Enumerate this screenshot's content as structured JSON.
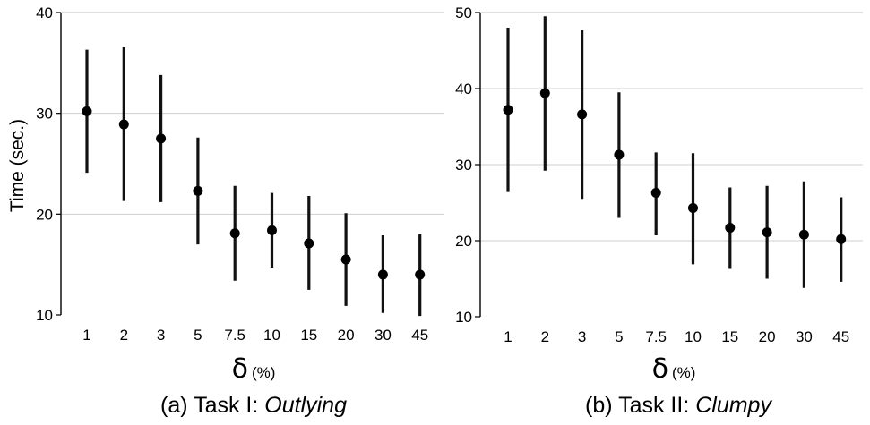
{
  "chart_data": [
    {
      "type": "scatter",
      "caption": {
        "prefix": "(a) Task I: ",
        "emph": "Outlying"
      },
      "ylabel": "Time (sec.)",
      "xlabel_symbol": "δ",
      "xlabel_unit": "(%)",
      "ylim": [
        10,
        40
      ],
      "yticks": [
        "10",
        "20",
        "30",
        "40"
      ],
      "categories": [
        "1",
        "2",
        "3",
        "5",
        "7.5",
        "10",
        "15",
        "20",
        "30",
        "45"
      ],
      "series": [
        {
          "values": [
            30.2,
            28.9,
            27.5,
            22.3,
            18.1,
            18.4,
            17.1,
            15.5,
            14.0,
            14.0
          ],
          "lower": [
            24.1,
            21.3,
            21.2,
            17.0,
            13.4,
            14.7,
            12.5,
            10.9,
            10.2,
            9.9
          ],
          "upper": [
            36.3,
            36.6,
            33.8,
            27.6,
            22.8,
            22.1,
            21.8,
            20.1,
            17.9,
            18.0
          ]
        }
      ],
      "grid": true
    },
    {
      "type": "scatter",
      "caption": {
        "prefix": "(b) Task II: ",
        "emph": "Clumpy"
      },
      "ylabel": "",
      "xlabel_symbol": "δ",
      "xlabel_unit": "(%)",
      "ylim": [
        10,
        50
      ],
      "yticks": [
        "10",
        "20",
        "30",
        "40",
        "50"
      ],
      "categories": [
        "1",
        "2",
        "3",
        "5",
        "7.5",
        "10",
        "15",
        "20",
        "30",
        "45"
      ],
      "series": [
        {
          "values": [
            37.2,
            39.4,
            36.6,
            31.3,
            26.3,
            24.3,
            21.7,
            21.1,
            20.8,
            20.2
          ],
          "lower": [
            26.4,
            29.2,
            25.5,
            23.0,
            20.7,
            16.9,
            16.3,
            15.0,
            13.8,
            14.6
          ],
          "upper": [
            48.0,
            49.5,
            47.7,
            39.5,
            31.6,
            31.5,
            27.0,
            27.2,
            27.8,
            25.7
          ]
        }
      ],
      "grid": true
    }
  ]
}
